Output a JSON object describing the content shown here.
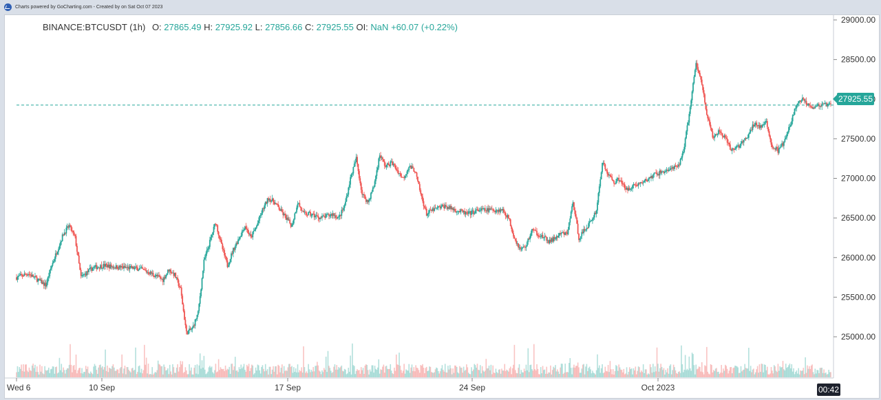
{
  "header": {
    "credit": "Charts powered by GoCharting.com - Created by  on Sat Oct 07 2023",
    "logo_icon": "gocharting-logo-icon"
  },
  "chart_data": {
    "type": "candlestick",
    "symbol": "BINANCE:BTCUSDT",
    "interval": "(1h)",
    "ohlc": {
      "o_label": "O:",
      "o": "27865.49",
      "h_label": "H:",
      "h": "27925.92",
      "l_label": "L:",
      "l": "27856.66",
      "c_label": "C:",
      "c": "27925.55",
      "oi_label": "OI:",
      "oi": "NaN",
      "change": "+60.07",
      "change_pct": "(+0.22%)"
    },
    "y_axis": {
      "ticks": [
        29000,
        28500,
        28000,
        27500,
        27000,
        26500,
        26000,
        25500,
        25000
      ],
      "tick_labels": [
        "29000.00",
        "28500.00",
        "28000.00",
        "27500.00",
        "27000.00",
        "26500.00",
        "26000.00",
        "25500.00",
        "25000.00"
      ],
      "ylim": [
        24550,
        29000
      ]
    },
    "x_axis": {
      "tick_labels": [
        "Wed 6",
        "10 Sep",
        "17 Sep",
        "24 Sep",
        "Oct 2023"
      ],
      "start": "2023-09-06",
      "end": "2023-10-07 00:42"
    },
    "last_price": 27925.55,
    "last_price_label": "27925.55",
    "countdown": "00:42",
    "colors": {
      "up": "#26a69a",
      "down": "#ef5350",
      "price_line": "#26a69a",
      "grid": "none"
    },
    "price_path": [
      [
        0,
        25750
      ],
      [
        2,
        25800
      ],
      [
        4,
        25700
      ],
      [
        5,
        25650
      ],
      [
        6,
        25900
      ],
      [
        8,
        26300
      ],
      [
        9,
        26400
      ],
      [
        10,
        26250
      ],
      [
        11,
        25750
      ],
      [
        13,
        25870
      ],
      [
        15,
        25900
      ],
      [
        17,
        25880
      ],
      [
        19,
        25870
      ],
      [
        21,
        25860
      ],
      [
        23,
        25800
      ],
      [
        25,
        25720
      ],
      [
        26,
        25850
      ],
      [
        27,
        25780
      ],
      [
        28,
        25600
      ],
      [
        29,
        25050
      ],
      [
        30,
        25100
      ],
      [
        31,
        25300
      ],
      [
        32,
        25950
      ],
      [
        33,
        26200
      ],
      [
        34,
        26450
      ],
      [
        35,
        26150
      ],
      [
        36,
        25900
      ],
      [
        37,
        26100
      ],
      [
        38,
        26250
      ],
      [
        39,
        26400
      ],
      [
        40,
        26250
      ],
      [
        41,
        26400
      ],
      [
        42,
        26600
      ],
      [
        43,
        26750
      ],
      [
        44,
        26700
      ],
      [
        45,
        26600
      ],
      [
        46,
        26500
      ],
      [
        47,
        26400
      ],
      [
        48,
        26700
      ],
      [
        49,
        26550
      ],
      [
        50,
        26550
      ],
      [
        52,
        26500
      ],
      [
        54,
        26550
      ],
      [
        55,
        26500
      ],
      [
        56,
        26650
      ],
      [
        57,
        27000
      ],
      [
        58,
        27250
      ],
      [
        59,
        26800
      ],
      [
        60,
        26700
      ],
      [
        61,
        26900
      ],
      [
        62,
        27300
      ],
      [
        63,
        27150
      ],
      [
        64,
        27200
      ],
      [
        65,
        27100
      ],
      [
        66,
        27000
      ],
      [
        67,
        27150
      ],
      [
        68,
        27100
      ],
      [
        69,
        26800
      ],
      [
        70,
        26550
      ],
      [
        71,
        26600
      ],
      [
        73,
        26650
      ],
      [
        75,
        26600
      ],
      [
        77,
        26550
      ],
      [
        79,
        26600
      ],
      [
        81,
        26600
      ],
      [
        83,
        26600
      ],
      [
        84,
        26500
      ],
      [
        85,
        26250
      ],
      [
        86,
        26100
      ],
      [
        87,
        26150
      ],
      [
        88,
        26350
      ],
      [
        89,
        26300
      ],
      [
        90,
        26250
      ],
      [
        91,
        26200
      ],
      [
        92,
        26250
      ],
      [
        93,
        26300
      ],
      [
        94,
        26300
      ],
      [
        95,
        26700
      ],
      [
        96,
        26250
      ],
      [
        97,
        26350
      ],
      [
        98,
        26450
      ],
      [
        99,
        26600
      ],
      [
        100,
        27200
      ],
      [
        101,
        27050
      ],
      [
        102,
        26950
      ],
      [
        103,
        27000
      ],
      [
        104,
        26850
      ],
      [
        105,
        26900
      ],
      [
        107,
        26950
      ],
      [
        109,
        27050
      ],
      [
        111,
        27100
      ],
      [
        113,
        27150
      ],
      [
        114,
        27400
      ],
      [
        115,
        27900
      ],
      [
        116,
        28450
      ],
      [
        117,
        28200
      ],
      [
        118,
        27750
      ],
      [
        119,
        27500
      ],
      [
        120,
        27600
      ],
      [
        121,
        27500
      ],
      [
        122,
        27350
      ],
      [
        123,
        27400
      ],
      [
        124,
        27450
      ],
      [
        125,
        27550
      ],
      [
        126,
        27700
      ],
      [
        127,
        27650
      ],
      [
        128,
        27700
      ],
      [
        129,
        27400
      ],
      [
        130,
        27350
      ],
      [
        131,
        27450
      ],
      [
        132,
        27650
      ],
      [
        133,
        27900
      ],
      [
        134,
        28000
      ],
      [
        135,
        27950
      ],
      [
        136,
        27900
      ],
      [
        137,
        27920
      ],
      [
        138,
        27925.55
      ]
    ]
  }
}
